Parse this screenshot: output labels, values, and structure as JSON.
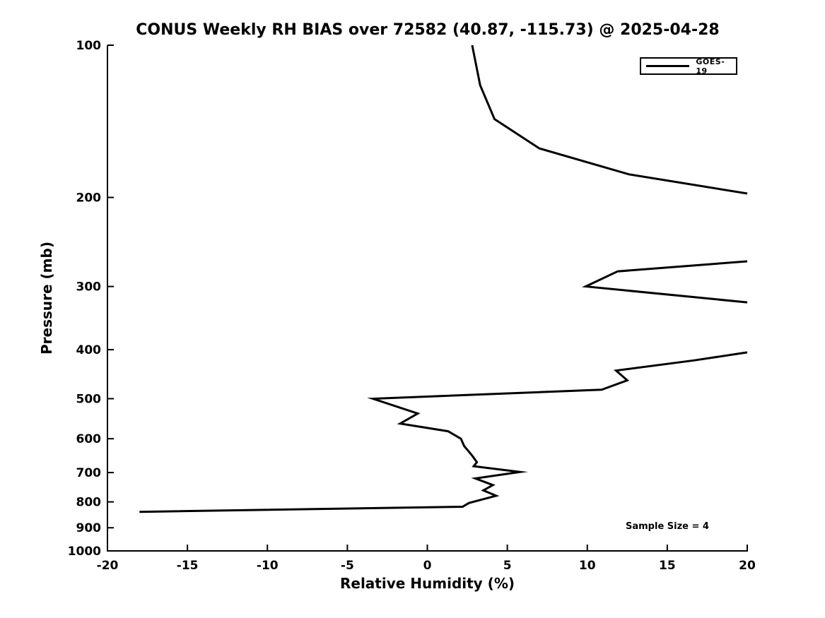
{
  "chart_data": {
    "type": "line",
    "title": "CONUS Weekly RH BIAS over 72582 (40.87, -115.73) @ 2025-04-28",
    "xlabel": "Relative Humidity (%)",
    "ylabel": "Pressure (mb)",
    "xlim": [
      -20,
      20
    ],
    "xticks": [
      -20,
      -15,
      -10,
      -5,
      0,
      5,
      10,
      15,
      20
    ],
    "yscale": "log",
    "ylim": [
      100,
      1000
    ],
    "y_inverted": true,
    "yticks": [
      100,
      200,
      300,
      400,
      500,
      600,
      700,
      800,
      900,
      1000
    ],
    "grid": false,
    "line_color": "#000000",
    "background_color": "#ffffff",
    "legend": {
      "position": "top-right",
      "entries": [
        {
          "label": "GOES-19",
          "color": "#000000"
        }
      ]
    },
    "annotation": "Sample Size = 4",
    "series": [
      {
        "name": "GOES-19",
        "segments_rh_pressure": [
          [
            [
              2.8,
              100
            ],
            [
              3.3,
              120
            ],
            [
              4.2,
              140
            ],
            [
              7.0,
              160
            ],
            [
              12.6,
              180
            ],
            [
              20,
              196.5
            ]
          ],
          [
            [
              20,
              267.5
            ],
            [
              11.9,
              280
            ],
            [
              9.9,
              300
            ],
            [
              20,
              322.5
            ]
          ],
          [
            [
              20,
              405
            ],
            [
              16.7,
              420
            ],
            [
              11.8,
              440
            ],
            [
              12.5,
              460
            ],
            [
              10.9,
              480
            ],
            [
              -3.4,
              500
            ],
            [
              -0.6,
              535
            ],
            [
              -1.7,
              560
            ],
            [
              1.3,
              580
            ],
            [
              2.1,
              600
            ],
            [
              2.3,
              620
            ],
            [
              2.8,
              648
            ],
            [
              3.1,
              668
            ],
            [
              2.9,
              680
            ],
            [
              5.8,
              698
            ],
            [
              3.0,
              719
            ],
            [
              4.1,
              741
            ],
            [
              3.5,
              759
            ],
            [
              4.3,
              778
            ],
            [
              2.6,
              804
            ],
            [
              2.2,
              818
            ],
            [
              -18.0,
              837
            ]
          ]
        ]
      }
    ]
  }
}
